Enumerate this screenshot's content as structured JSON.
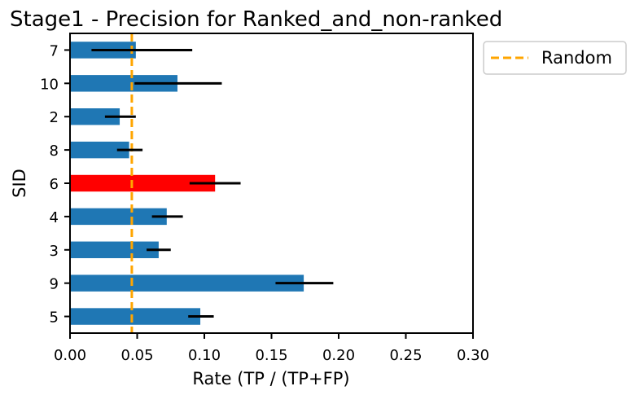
{
  "chart_data": {
    "type": "bar",
    "orientation": "horizontal",
    "title": "Stage1 - Precision for Ranked_and_non-ranked",
    "xlabel": "Rate (TP / (TP+FP)",
    "ylabel": "SID",
    "categories": [
      "5",
      "9",
      "3",
      "4",
      "6",
      "8",
      "2",
      "10",
      "7"
    ],
    "values": [
      0.097,
      0.174,
      0.066,
      0.072,
      0.108,
      0.044,
      0.037,
      0.08,
      0.049
    ],
    "error_low": [
      0.088,
      0.153,
      0.057,
      0.061,
      0.089,
      0.035,
      0.026,
      0.048,
      0.016
    ],
    "error_high": [
      0.107,
      0.196,
      0.075,
      0.084,
      0.127,
      0.054,
      0.049,
      0.113,
      0.091
    ],
    "highlight_category": "6",
    "highlight_color": "#ff0000",
    "bar_color": "#1f77b4",
    "error_color": "#000000",
    "reference_line": {
      "name": "Random",
      "value": 0.046,
      "color": "#ffa500",
      "style": "dashed"
    },
    "xlim": [
      0.0,
      0.3
    ],
    "xticks": [
      "0.00",
      "0.05",
      "0.10",
      "0.15",
      "0.20",
      "0.25",
      "0.30"
    ],
    "grid": false,
    "legend": {
      "position": "outside-top-right",
      "entries": [
        "Random"
      ]
    }
  }
}
